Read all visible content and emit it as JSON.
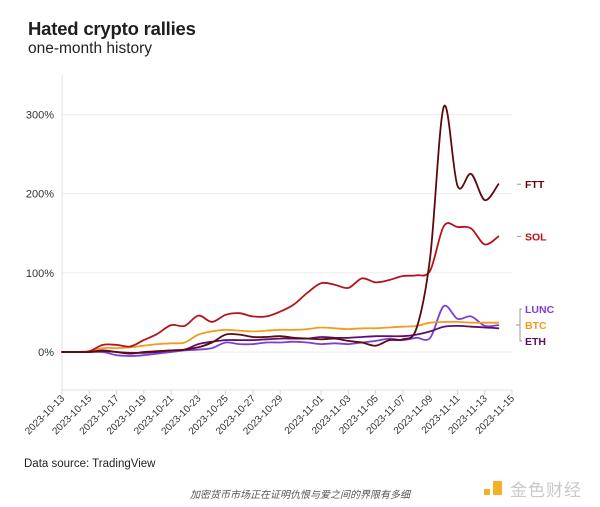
{
  "header": {
    "title": "Hated crypto rallies",
    "subtitle": "one-month history"
  },
  "footer": {
    "source": "Data source: TradingView",
    "caption": "加密货币市场正在证明仇恨与爱之间的界限有多细",
    "logo_text": "金色财经",
    "logo_color": "#f3b12a"
  },
  "chart_data": {
    "type": "line",
    "title": "Hated crypto rallies",
    "subtitle": "one-month history",
    "xlabel": "",
    "ylabel": "",
    "x_start": "2023-10-13",
    "x_end": "2023-11-15",
    "x_ticks": [
      "2023-10-13",
      "2023-10-15",
      "2023-10-17",
      "2023-10-19",
      "2023-10-21",
      "2023-10-23",
      "2023-10-25",
      "2023-10-27",
      "2023-10-29",
      "2023-11-01",
      "2023-11-03",
      "2023-11-05",
      "2023-11-07",
      "2023-11-09",
      "2023-11-11",
      "2023-11-13",
      "2023-11-15"
    ],
    "y_ticks": [
      0,
      100,
      200,
      300
    ],
    "y_tick_labels": [
      "0%",
      "100%",
      "200%",
      "300%"
    ],
    "ylim": [
      -48,
      350
    ],
    "grid": "horizontal",
    "legend": "right (direct labels at line ends)",
    "series": [
      {
        "name": "SOL",
        "color": "#b5121b",
        "x": [
          "2023-10-13",
          "2023-10-14",
          "2023-10-15",
          "2023-10-16",
          "2023-10-17",
          "2023-10-18",
          "2023-10-19",
          "2023-10-20",
          "2023-10-21",
          "2023-10-22",
          "2023-10-23",
          "2023-10-24",
          "2023-10-25",
          "2023-10-26",
          "2023-10-27",
          "2023-10-28",
          "2023-10-29",
          "2023-10-30",
          "2023-10-31",
          "2023-11-01",
          "2023-11-02",
          "2023-11-03",
          "2023-11-04",
          "2023-11-05",
          "2023-11-06",
          "2023-11-07",
          "2023-11-08",
          "2023-11-09",
          "2023-11-10",
          "2023-11-11",
          "2023-11-12",
          "2023-11-13",
          "2023-11-14"
        ],
        "values": [
          0,
          0,
          1,
          9,
          9,
          7,
          15,
          23,
          34,
          33,
          46,
          38,
          47,
          49,
          45,
          45,
          51,
          60,
          75,
          87,
          85,
          81,
          93,
          88,
          91,
          96,
          97,
          103,
          159,
          158,
          156,
          136,
          146
        ]
      },
      {
        "name": "FTT",
        "color": "#5c0a0e",
        "x": [
          "2023-10-13",
          "2023-10-14",
          "2023-10-15",
          "2023-10-16",
          "2023-10-17",
          "2023-10-18",
          "2023-10-19",
          "2023-10-20",
          "2023-10-21",
          "2023-10-22",
          "2023-10-23",
          "2023-10-24",
          "2023-10-25",
          "2023-10-26",
          "2023-10-27",
          "2023-10-28",
          "2023-10-29",
          "2023-10-30",
          "2023-10-31",
          "2023-11-01",
          "2023-11-02",
          "2023-11-03",
          "2023-11-04",
          "2023-11-05",
          "2023-11-06",
          "2023-11-07",
          "2023-11-08",
          "2023-11-09",
          "2023-11-10",
          "2023-11-11",
          "2023-11-12",
          "2023-11-13",
          "2023-11-14"
        ],
        "values": [
          0,
          0,
          0,
          2,
          0,
          -2,
          0,
          1,
          2,
          3,
          6,
          12,
          22,
          22,
          19,
          19,
          20,
          18,
          17,
          16,
          17,
          14,
          12,
          8,
          15,
          16,
          30,
          120,
          310,
          210,
          225,
          192,
          212
        ]
      },
      {
        "name": "LUNC",
        "color": "#7b3fd6",
        "x": [
          "2023-10-13",
          "2023-10-14",
          "2023-10-15",
          "2023-10-16",
          "2023-10-17",
          "2023-10-18",
          "2023-10-19",
          "2023-10-20",
          "2023-10-21",
          "2023-10-22",
          "2023-10-23",
          "2023-10-24",
          "2023-10-25",
          "2023-10-26",
          "2023-10-27",
          "2023-10-28",
          "2023-10-29",
          "2023-10-30",
          "2023-10-31",
          "2023-11-01",
          "2023-11-02",
          "2023-11-03",
          "2023-11-04",
          "2023-11-05",
          "2023-11-06",
          "2023-11-07",
          "2023-11-08",
          "2023-11-09",
          "2023-11-10",
          "2023-11-11",
          "2023-11-12",
          "2023-11-13",
          "2023-11-14"
        ],
        "values": [
          0,
          0,
          0,
          0,
          -4,
          -5,
          -4,
          -2,
          0,
          2,
          3,
          5,
          12,
          10,
          10,
          12,
          12,
          13,
          12,
          10,
          11,
          10,
          12,
          14,
          17,
          15,
          18,
          18,
          58,
          42,
          45,
          33,
          34
        ]
      },
      {
        "name": "BTC",
        "color": "#f29b1d",
        "x": [
          "2023-10-13",
          "2023-10-14",
          "2023-10-15",
          "2023-10-16",
          "2023-10-17",
          "2023-10-18",
          "2023-10-19",
          "2023-10-20",
          "2023-10-21",
          "2023-10-22",
          "2023-10-23",
          "2023-10-24",
          "2023-10-25",
          "2023-10-26",
          "2023-10-27",
          "2023-10-28",
          "2023-10-29",
          "2023-10-30",
          "2023-10-31",
          "2023-11-01",
          "2023-11-02",
          "2023-11-03",
          "2023-11-04",
          "2023-11-05",
          "2023-11-06",
          "2023-11-07",
          "2023-11-08",
          "2023-11-09",
          "2023-11-10",
          "2023-11-11",
          "2023-11-12",
          "2023-11-13",
          "2023-11-14"
        ],
        "values": [
          0,
          0,
          1,
          5,
          5,
          6,
          8,
          10,
          11,
          12,
          22,
          26,
          28,
          27,
          26,
          27,
          28,
          28,
          29,
          31,
          30,
          29,
          30,
          30,
          31,
          32,
          33,
          37,
          38,
          38,
          37,
          37,
          37
        ]
      },
      {
        "name": "ETH",
        "color": "#5b0f6e",
        "x": [
          "2023-10-13",
          "2023-10-14",
          "2023-10-15",
          "2023-10-16",
          "2023-10-17",
          "2023-10-18",
          "2023-10-19",
          "2023-10-20",
          "2023-10-21",
          "2023-10-22",
          "2023-10-23",
          "2023-10-24",
          "2023-10-25",
          "2023-10-26",
          "2023-10-27",
          "2023-10-28",
          "2023-10-29",
          "2023-10-30",
          "2023-10-31",
          "2023-11-01",
          "2023-11-02",
          "2023-11-03",
          "2023-11-04",
          "2023-11-05",
          "2023-11-06",
          "2023-11-07",
          "2023-11-08",
          "2023-11-09",
          "2023-11-10",
          "2023-11-11",
          "2023-11-12",
          "2023-11-13",
          "2023-11-14"
        ],
        "values": [
          0,
          0,
          0,
          1,
          0,
          -1,
          -1,
          0,
          2,
          3,
          10,
          13,
          15,
          15,
          15,
          16,
          17,
          17,
          17,
          19,
          18,
          18,
          19,
          20,
          20,
          20,
          22,
          26,
          32,
          33,
          32,
          31,
          30
        ]
      }
    ],
    "labels": [
      {
        "text": "FTT",
        "series": "FTT",
        "color": "#5c0a0e"
      },
      {
        "text": "SOL",
        "series": "SOL",
        "color": "#b5121b"
      },
      {
        "text": "LUNC",
        "series": "LUNC",
        "color": "#7b3fd6"
      },
      {
        "text": "BTC",
        "series": "BTC",
        "color": "#f29b1d"
      },
      {
        "text": "ETH",
        "series": "ETH",
        "color": "#5b0f6e"
      }
    ]
  }
}
